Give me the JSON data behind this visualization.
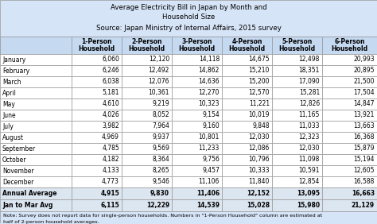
{
  "title_line1": "Average Electricity Bill in Japan by Month and",
  "title_line2": "Household Size",
  "title_line3": "Source: Japan Ministry of Internal Affairs, 2015 survey",
  "col_headers_line1": [
    "",
    "1-Person",
    "2-Person",
    "3-Person",
    "4-Person",
    "5-Person",
    "6-Person"
  ],
  "col_headers_line2": [
    "",
    "Household",
    "Household",
    "Household",
    "Household",
    "Household",
    "Household"
  ],
  "months": [
    "January",
    "February",
    "March",
    "April",
    "May",
    "June",
    "July",
    "August",
    "September",
    "October",
    "November",
    "December"
  ],
  "month_data": [
    [
      6060,
      12120,
      14118,
      14675,
      12498,
      20993
    ],
    [
      6246,
      12492,
      14862,
      15210,
      18351,
      20895
    ],
    [
      6038,
      12076,
      14636,
      15200,
      17090,
      21500
    ],
    [
      5181,
      10361,
      12270,
      12570,
      15281,
      17504
    ],
    [
      4610,
      9219,
      10323,
      11221,
      12826,
      14847
    ],
    [
      4026,
      8052,
      9154,
      10019,
      11165,
      13921
    ],
    [
      3982,
      7964,
      9160,
      9848,
      11033,
      13663
    ],
    [
      4969,
      9937,
      10801,
      12030,
      12323,
      16368
    ],
    [
      4785,
      9569,
      11233,
      12086,
      12030,
      15879
    ],
    [
      4182,
      8364,
      9756,
      10796,
      11098,
      15194
    ],
    [
      4133,
      8265,
      9457,
      10333,
      10591,
      12605
    ],
    [
      4773,
      9546,
      11106,
      11840,
      12854,
      16588
    ]
  ],
  "summary_rows": [
    [
      "Annual Average",
      4915,
      9830,
      11406,
      12152,
      13095,
      16663
    ],
    [
      "Jan to Mar Avg",
      6115,
      12229,
      14539,
      15028,
      15980,
      21129
    ]
  ],
  "note_line1": "Note: Survey does not report data for single-person households. Numbers in \"1-Person Household\" column are estimated at",
  "note_line2": "half of 2-person household averages.",
  "title_bg": "#d6e4f7",
  "header_bg": "#c5d9f1",
  "row_bg": "#ffffff",
  "summary_bg": "#dce6f1",
  "note_bg": "#d6e4f7",
  "border_color": "#999999",
  "text_color": "#000000"
}
